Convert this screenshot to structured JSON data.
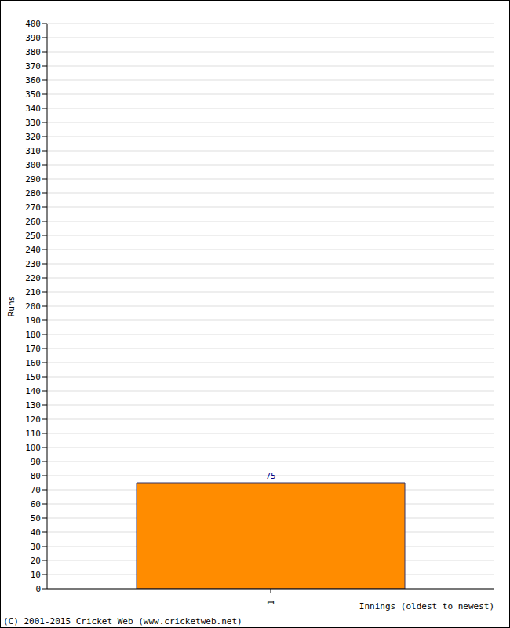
{
  "chart_data": {
    "type": "bar",
    "categories": [
      "1"
    ],
    "values": [
      75
    ],
    "color": "#ff8c00",
    "ylim": [
      0,
      400
    ],
    "yticks": [
      0,
      10,
      20,
      30,
      40,
      50,
      60,
      70,
      80,
      90,
      100,
      110,
      120,
      130,
      140,
      150,
      160,
      170,
      180,
      190,
      200,
      210,
      220,
      230,
      240,
      250,
      260,
      270,
      280,
      290,
      300,
      310,
      320,
      330,
      340,
      350,
      360,
      370,
      380,
      390,
      400
    ],
    "grid": true,
    "data_labels": true,
    "y_label": "Runs",
    "x_label": "Innings (oldest to newest)",
    "annotations": [
      "(C) 2001-2015 Cricket Web (www.cricketweb.net)"
    ]
  }
}
